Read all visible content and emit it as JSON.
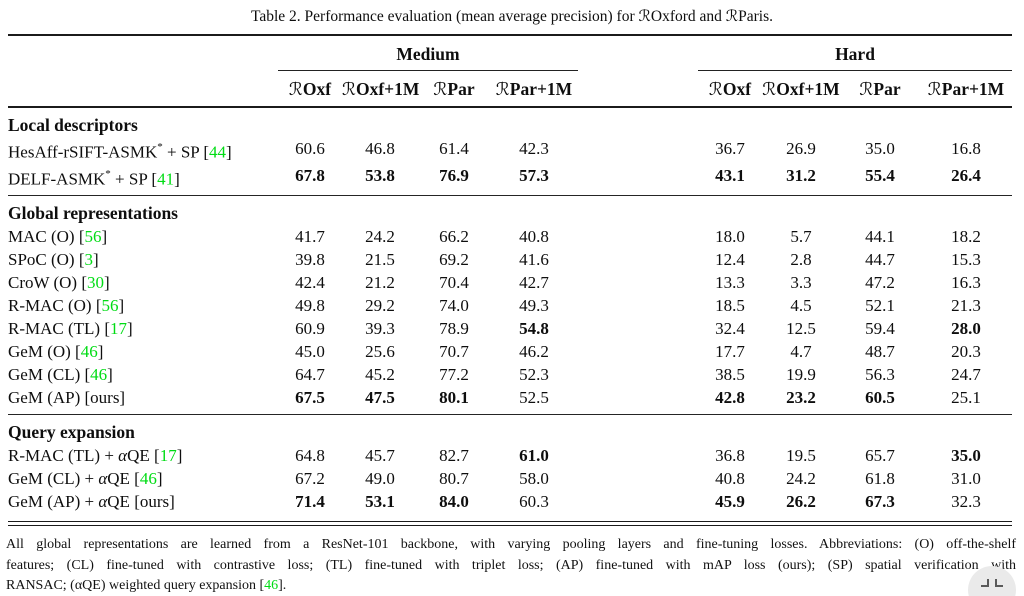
{
  "caption": "Table 2. Performance evaluation (mean average precision) for ℛOxford and ℛParis.",
  "groups": [
    {
      "label": "Medium",
      "columns": [
        "ℛOxf",
        "ℛOxf+1M",
        "ℛPar",
        "ℛPar+1M"
      ]
    },
    {
      "label": "Hard",
      "columns": [
        "ℛOxf",
        "ℛOxf+1M",
        "ℛPar",
        "ℛPar+1M"
      ]
    }
  ],
  "sections": [
    {
      "title": "Local descriptors",
      "rows": [
        {
          "label": "HesAff-rSIFT-ASMK* + SP",
          "ref": "44",
          "ref_green": true,
          "values": [
            "60.6",
            "46.8",
            "61.4",
            "42.3",
            "36.7",
            "26.9",
            "35.0",
            "16.8"
          ],
          "bold": [
            0,
            0,
            0,
            0,
            0,
            0,
            0,
            0
          ]
        },
        {
          "label": "DELF-ASMK* + SP",
          "ref": "41",
          "ref_green": true,
          "values": [
            "67.8",
            "53.8",
            "76.9",
            "57.3",
            "43.1",
            "31.2",
            "55.4",
            "26.4"
          ],
          "bold": [
            1,
            1,
            1,
            1,
            1,
            1,
            1,
            1
          ]
        }
      ]
    },
    {
      "title": "Global representations",
      "rows": [
        {
          "label": "MAC (O)",
          "ref": "56",
          "ref_green": true,
          "values": [
            "41.7",
            "24.2",
            "66.2",
            "40.8",
            "18.0",
            "5.7",
            "44.1",
            "18.2"
          ],
          "bold": [
            0,
            0,
            0,
            0,
            0,
            0,
            0,
            0
          ]
        },
        {
          "label": "SPoC (O)",
          "ref": "3",
          "ref_green": true,
          "values": [
            "39.8",
            "21.5",
            "69.2",
            "41.6",
            "12.4",
            "2.8",
            "44.7",
            "15.3"
          ],
          "bold": [
            0,
            0,
            0,
            0,
            0,
            0,
            0,
            0
          ]
        },
        {
          "label": "CroW (O)",
          "ref": "30",
          "ref_green": true,
          "values": [
            "42.4",
            "21.2",
            "70.4",
            "42.7",
            "13.3",
            "3.3",
            "47.2",
            "16.3"
          ],
          "bold": [
            0,
            0,
            0,
            0,
            0,
            0,
            0,
            0
          ]
        },
        {
          "label": "R-MAC (O)",
          "ref": "56",
          "ref_green": true,
          "values": [
            "49.8",
            "29.2",
            "74.0",
            "49.3",
            "18.5",
            "4.5",
            "52.1",
            "21.3"
          ],
          "bold": [
            0,
            0,
            0,
            0,
            0,
            0,
            0,
            0
          ]
        },
        {
          "label": "R-MAC (TL)",
          "ref": "17",
          "ref_green": true,
          "values": [
            "60.9",
            "39.3",
            "78.9",
            "54.8",
            "32.4",
            "12.5",
            "59.4",
            "28.0"
          ],
          "bold": [
            0,
            0,
            0,
            1,
            0,
            0,
            0,
            1
          ]
        },
        {
          "label": "GeM (O)",
          "ref": "46",
          "ref_green": true,
          "values": [
            "45.0",
            "25.6",
            "70.7",
            "46.2",
            "17.7",
            "4.7",
            "48.7",
            "20.3"
          ],
          "bold": [
            0,
            0,
            0,
            0,
            0,
            0,
            0,
            0
          ]
        },
        {
          "label": "GeM (CL)",
          "ref": "46",
          "ref_green": true,
          "values": [
            "64.7",
            "45.2",
            "77.2",
            "52.3",
            "38.5",
            "19.9",
            "56.3",
            "24.7"
          ],
          "bold": [
            0,
            0,
            0,
            0,
            0,
            0,
            0,
            0
          ]
        },
        {
          "label": "GeM (AP)",
          "ref": "ours",
          "ref_green": false,
          "values": [
            "67.5",
            "47.5",
            "80.1",
            "52.5",
            "42.8",
            "23.2",
            "60.5",
            "25.1"
          ],
          "bold": [
            1,
            1,
            1,
            0,
            1,
            1,
            1,
            0
          ]
        }
      ]
    },
    {
      "title": "Query expansion",
      "rows": [
        {
          "label": "R-MAC (TL) + αQE",
          "ref": "17",
          "ref_green": true,
          "values": [
            "64.8",
            "45.7",
            "82.7",
            "61.0",
            "36.8",
            "19.5",
            "65.7",
            "35.0"
          ],
          "bold": [
            0,
            0,
            0,
            1,
            0,
            0,
            0,
            1
          ]
        },
        {
          "label": "GeM (CL) + αQE",
          "ref": "46",
          "ref_green": true,
          "values": [
            "67.2",
            "49.0",
            "80.7",
            "58.0",
            "40.8",
            "24.2",
            "61.8",
            "31.0"
          ],
          "bold": [
            0,
            0,
            0,
            0,
            0,
            0,
            0,
            0
          ]
        },
        {
          "label": "GeM (AP) + αQE",
          "ref": "ours",
          "ref_green": false,
          "values": [
            "71.4",
            "53.1",
            "84.0",
            "60.3",
            "45.9",
            "26.2",
            "67.3",
            "32.3"
          ],
          "bold": [
            1,
            1,
            1,
            0,
            1,
            1,
            1,
            0
          ]
        }
      ]
    }
  ],
  "footnote": {
    "line1": "All global representations are learned from a ResNet-101 backbone, with varying pooling layers and fine-tuning losses. Abbreviations: (O) off-the-shelf",
    "line2": "features; (CL) fine-tuned with contrastive loss; (TL) fine-tuned with triplet loss; (AP) fine-tuned with mAP loss (ours); (SP) spatial verification with",
    "line3_pre": "RANSAC; (αQE) weighted query expansion [",
    "line3_ref": "46",
    "line3_post": "]."
  },
  "colors": {
    "citation": "#00dc14",
    "text": "#0e0e0e",
    "rule": "#1b1b1b"
  },
  "overlay": {
    "icon": "gesture-indicator-icon"
  }
}
